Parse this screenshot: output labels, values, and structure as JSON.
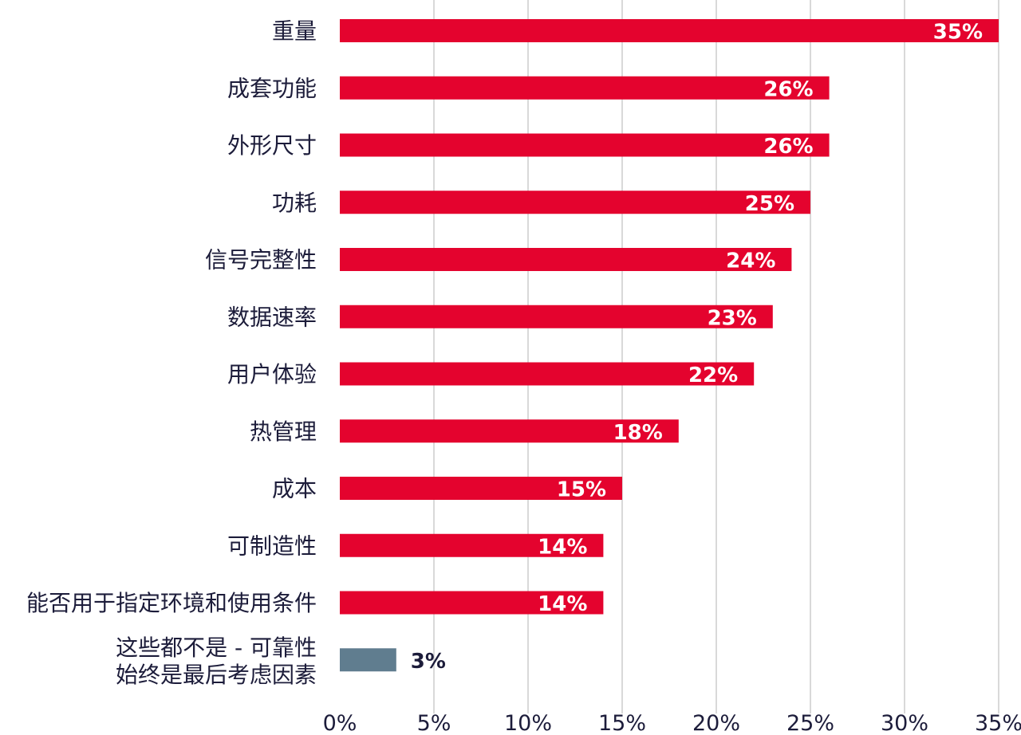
{
  "chart_data": {
    "type": "bar",
    "orientation": "horizontal",
    "categories": [
      "重量",
      "成套功能",
      "外形尺寸",
      "功耗",
      "信号完整性",
      "数据速率",
      "用户体验",
      "热管理",
      "成本",
      "可制造性",
      "能否用于指定环境和使用条件",
      [
        "这些都不是 - 可靠性",
        "始终是最后考虑因素"
      ]
    ],
    "values": [
      35,
      26,
      26,
      25,
      24,
      23,
      22,
      18,
      15,
      14,
      14,
      3
    ],
    "value_labels": [
      "35%",
      "26%",
      "26%",
      "25%",
      "24%",
      "23%",
      "22%",
      "18%",
      "15%",
      "14%",
      "14%",
      "3%"
    ],
    "xlim": [
      0,
      35
    ],
    "x_ticks": [
      "0%",
      "5%",
      "10%",
      "15%",
      "20%",
      "25%",
      "30%",
      "35%"
    ],
    "grid": "vertical",
    "colors": {
      "primary": "#e4032e",
      "highlight": "#607d8f",
      "label_on_bar": "#ffffff",
      "label_outside": "#1c1c3a"
    },
    "highlight_index": 11
  }
}
